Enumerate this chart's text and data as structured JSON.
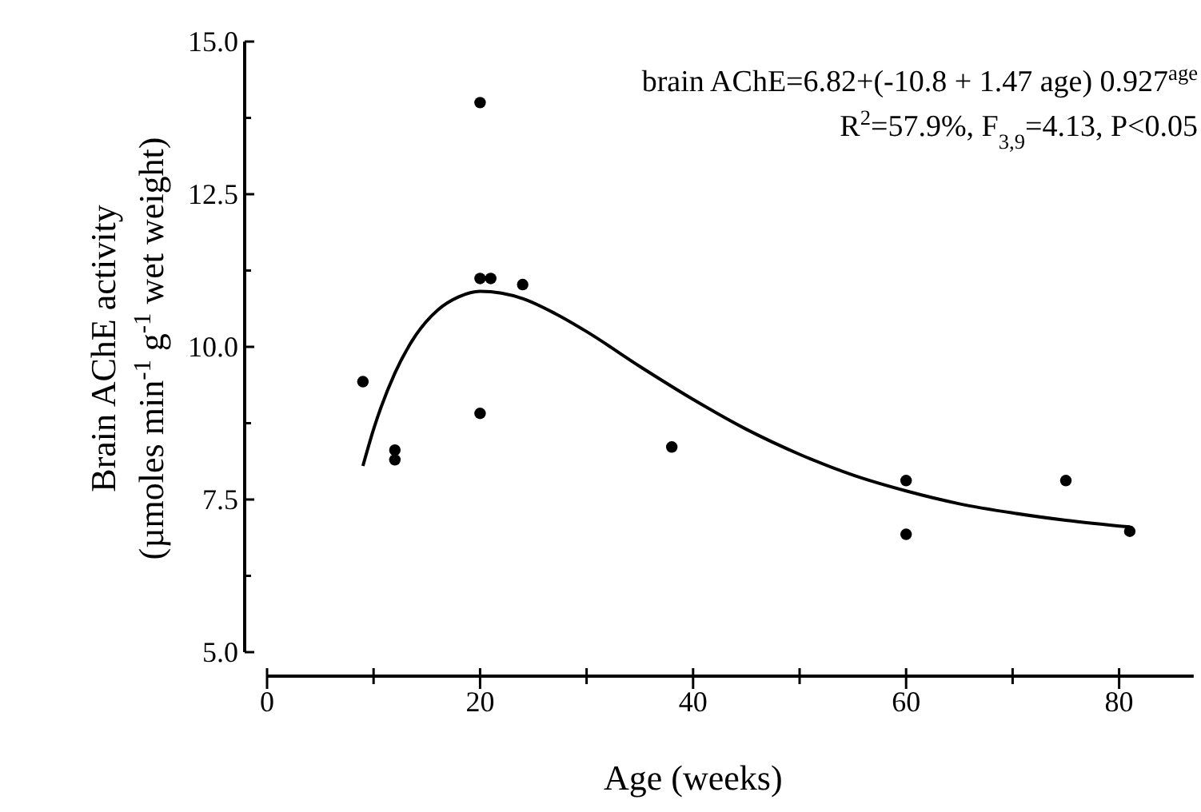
{
  "chart_data": {
    "type": "scatter",
    "xlabel": "Age  (weeks)",
    "ylabel": "Brain AChE activity\n(µmoles min$^{-1}$ g$^{-1}$ wet weight)",
    "xlim": [
      0,
      87
    ],
    "ylim": [
      5,
      15
    ],
    "xticks": [
      0,
      {
        "value": 10,
        "label": null
      },
      20,
      {
        "value": 30,
        "label": null
      },
      40,
      {
        "value": 50,
        "label": null
      },
      60,
      {
        "value": 70,
        "label": null
      },
      80
    ],
    "yticks": [
      {
        "value": 5,
        "label": "5.0"
      },
      {
        "value": 6.25,
        "label": null
      },
      {
        "value": 7.5,
        "label": "7.5"
      },
      {
        "value": 8.75,
        "label": null
      },
      {
        "value": 10,
        "label": "10.0"
      },
      {
        "value": 11.25,
        "label": null
      },
      {
        "value": 12.5,
        "label": "12.5"
      },
      {
        "value": 13.75,
        "label": null
      },
      {
        "value": 15,
        "label": "15.0"
      }
    ],
    "grid": false,
    "series": [
      {
        "color": "#000000",
        "marker": "circle",
        "x": [
          9,
          12,
          12,
          20,
          20,
          20,
          21,
          24,
          38,
          60,
          60,
          75,
          81
        ],
        "values": [
          9.43,
          8.31,
          8.15,
          14.0,
          11.12,
          8.91,
          11.12,
          11.02,
          8.36,
          7.81,
          6.93,
          7.81,
          6.98
        ]
      },
      {
        "type": "line",
        "color": "#000000",
        "line_style": "solid",
        "marker": "none",
        "x": [
          9,
          10,
          12,
          14,
          16,
          18,
          20,
          22,
          24,
          27,
          30,
          35,
          40,
          45,
          50,
          55,
          60,
          65,
          70,
          75,
          81
        ],
        "values": [
          8.05,
          8.65,
          9.57,
          10.2,
          10.6,
          10.82,
          10.91,
          10.88,
          10.79,
          10.55,
          10.25,
          9.68,
          9.14,
          8.65,
          8.24,
          7.9,
          7.64,
          7.43,
          7.28,
          7.16,
          7.05
        ]
      }
    ],
    "annotations": [
      "brain AChE=6.82+(-10.8 + 1.47 age) 0.927$^{age}$",
      "R$^{2}$=57.9%, F$_{3,9}$=4.13, P<0.05"
    ]
  }
}
